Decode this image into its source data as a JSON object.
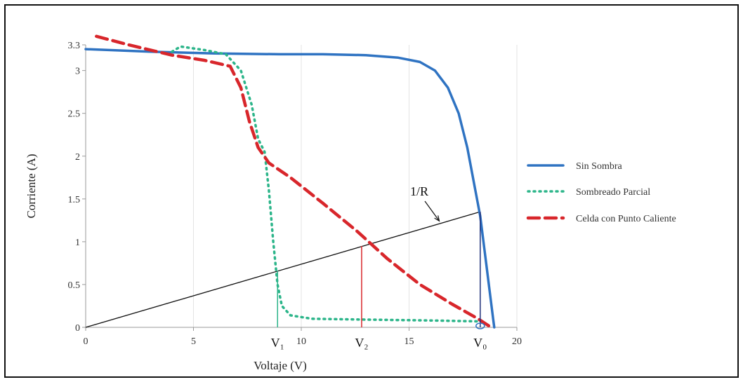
{
  "chart_data": {
    "type": "line",
    "xlabel": "Voltaje (V)",
    "ylabel": "Corriente (A)",
    "xlim": [
      0,
      20
    ],
    "ylim": [
      0,
      3.3
    ],
    "x_ticks": [
      "0",
      "5",
      "10",
      "15",
      "20"
    ],
    "y_ticks": [
      "0",
      "0.5",
      "1",
      "1.5",
      "2",
      "2.5",
      "3",
      "3.3"
    ],
    "grid": "vertical",
    "legend_position": "right",
    "series": [
      {
        "name": "Sin Sombra",
        "color": "#2f73c2",
        "style": "solid",
        "points": [
          [
            0,
            3.25
          ],
          [
            3,
            3.22
          ],
          [
            6,
            3.2
          ],
          [
            9,
            3.19
          ],
          [
            11,
            3.19
          ],
          [
            13,
            3.18
          ],
          [
            14.5,
            3.15
          ],
          [
            15.5,
            3.1
          ],
          [
            16.2,
            3.0
          ],
          [
            16.8,
            2.8
          ],
          [
            17.3,
            2.5
          ],
          [
            17.7,
            2.1
          ],
          [
            18.0,
            1.7
          ],
          [
            18.3,
            1.3
          ],
          [
            18.55,
            0.8
          ],
          [
            18.75,
            0.4
          ],
          [
            18.9,
            0.1
          ],
          [
            18.95,
            0
          ]
        ]
      },
      {
        "name": "Sombreado Parcial",
        "color": "#2cb58a",
        "style": "dotted",
        "points": [
          [
            4,
            3.22
          ],
          [
            4.4,
            3.28
          ],
          [
            5.5,
            3.24
          ],
          [
            6.5,
            3.19
          ],
          [
            7.2,
            3.0
          ],
          [
            7.7,
            2.6
          ],
          [
            8.0,
            2.2
          ],
          [
            8.3,
            2.05
          ],
          [
            8.5,
            1.6
          ],
          [
            8.7,
            1.0
          ],
          [
            8.9,
            0.5
          ],
          [
            9.1,
            0.25
          ],
          [
            9.5,
            0.14
          ],
          [
            10.5,
            0.1
          ],
          [
            13,
            0.09
          ],
          [
            16,
            0.08
          ],
          [
            18.2,
            0.07
          ]
        ]
      },
      {
        "name": "Celda con Punto Caliente",
        "color": "#d8262b",
        "style": "dashed",
        "points": [
          [
            0.5,
            3.4
          ],
          [
            2,
            3.3
          ],
          [
            4,
            3.18
          ],
          [
            5.5,
            3.12
          ],
          [
            6.7,
            3.05
          ],
          [
            7.2,
            2.8
          ],
          [
            7.6,
            2.4
          ],
          [
            8.0,
            2.1
          ],
          [
            8.5,
            1.92
          ],
          [
            9.5,
            1.75
          ],
          [
            11,
            1.45
          ],
          [
            12.6,
            1.12
          ],
          [
            14,
            0.8
          ],
          [
            15.5,
            0.5
          ],
          [
            17,
            0.27
          ],
          [
            18.2,
            0.1
          ],
          [
            18.8,
            0
          ]
        ]
      }
    ],
    "load_line": {
      "color": "#111111",
      "from": [
        0,
        0
      ],
      "to": [
        18.3,
        1.35
      ]
    },
    "vertical_markers": [
      {
        "x": 8.9,
        "y": 0.66,
        "color": "#2cb58a",
        "label": "V₁"
      },
      {
        "x": 12.8,
        "y": 0.95,
        "color": "#d8262b",
        "label": "V₂"
      },
      {
        "x": 18.3,
        "y": 1.35,
        "color": "#1e2f7a",
        "label": "V₀"
      }
    ],
    "annotations": [
      {
        "text": "1/R",
        "target_x": 16.4,
        "target_y": 1.21
      }
    ]
  }
}
